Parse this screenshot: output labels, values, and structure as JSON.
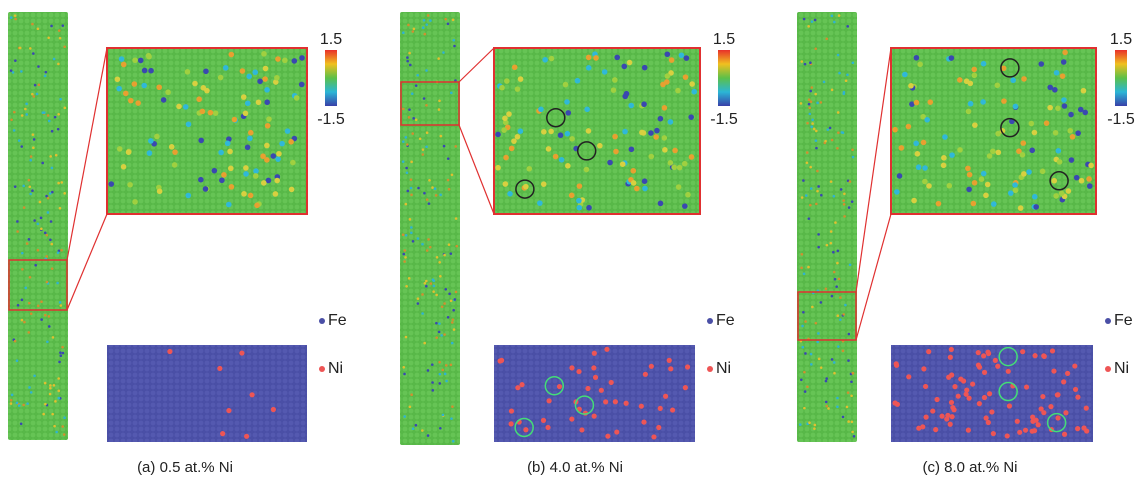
{
  "panels": [
    {
      "caption": "(a) 0.5 at.% Ni",
      "colorbar_max": "1.5",
      "colorbar_min": "-1.5",
      "legend": [
        "Fe",
        "Ni"
      ]
    },
    {
      "caption": "(b) 4.0 at.% Ni",
      "colorbar_max": "1.5",
      "colorbar_min": "-1.5",
      "legend": [
        "Fe",
        "Ni"
      ]
    },
    {
      "caption": "(c) 8.0 at.% Ni",
      "colorbar_max": "1.5",
      "colorbar_min": "-1.5",
      "legend": [
        "Fe",
        "Ni"
      ]
    }
  ]
}
